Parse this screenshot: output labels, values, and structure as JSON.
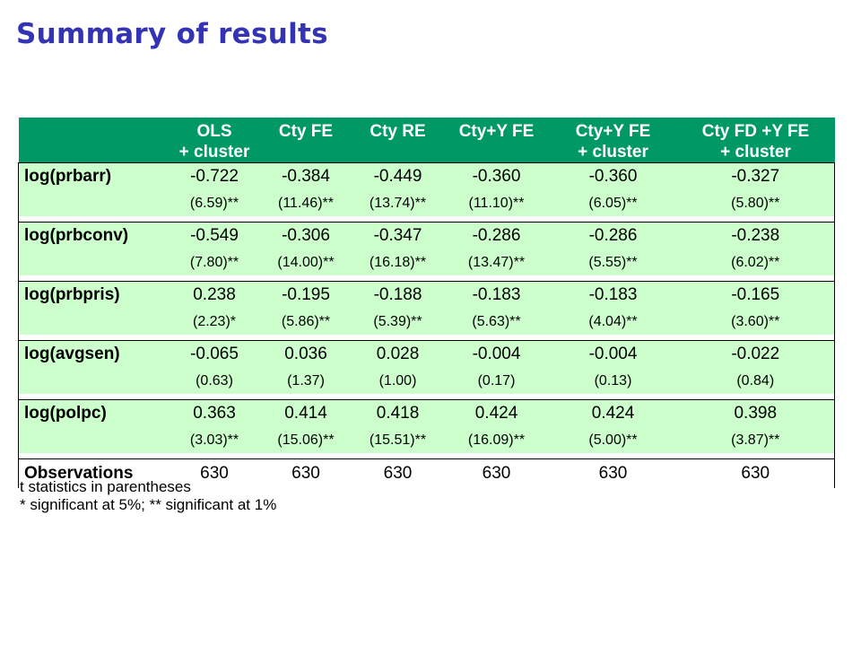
{
  "title": "Summary of results",
  "table": {
    "columns": [
      [
        "OLS",
        "+ cluster"
      ],
      [
        "Cty FE"
      ],
      [
        "Cty RE"
      ],
      [
        "Cty+Y FE"
      ],
      [
        "Cty+Y FE",
        "+ cluster"
      ],
      [
        "Cty FD +Y FE",
        "+ cluster"
      ]
    ],
    "rows": [
      {
        "label": "log(prbarr)",
        "coef": [
          "-0.722",
          "-0.384",
          "-0.449",
          "-0.360",
          "-0.360",
          "-0.327"
        ],
        "t": [
          "(6.59)**",
          "(11.46)**",
          "(13.74)**",
          "(11.10)**",
          "(6.05)**",
          "(5.80)**"
        ]
      },
      {
        "label": "log(prbconv)",
        "coef": [
          "-0.549",
          "-0.306",
          "-0.347",
          "-0.286",
          "-0.286",
          "-0.238"
        ],
        "t": [
          "(7.80)**",
          "(14.00)**",
          "(16.18)**",
          "(13.47)**",
          "(5.55)**",
          "(6.02)**"
        ]
      },
      {
        "label": "log(prbpris)",
        "coef": [
          "0.238",
          "-0.195",
          "-0.188",
          "-0.183",
          "-0.183",
          "-0.165"
        ],
        "t": [
          "(2.23)*",
          "(5.86)**",
          "(5.39)**",
          "(5.63)**",
          "(4.04)**",
          "(3.60)**"
        ]
      },
      {
        "label": "log(avgsen)",
        "coef": [
          "-0.065",
          "0.036",
          "0.028",
          "-0.004",
          "-0.004",
          "-0.022"
        ],
        "t": [
          "(0.63)",
          "(1.37)",
          "(1.00)",
          "(0.17)",
          "(0.13)",
          "(0.84)"
        ]
      },
      {
        "label": "log(polpc)",
        "coef": [
          "0.363",
          "0.414",
          "0.418",
          "0.424",
          "0.424",
          "0.398"
        ],
        "t": [
          "(3.03)**",
          "(15.06)**",
          "(15.51)**",
          "(16.09)**",
          "(5.00)**",
          "(3.87)**"
        ]
      }
    ],
    "observations": {
      "label": "Observations",
      "values": [
        "630",
        "630",
        "630",
        "630",
        "630",
        "630"
      ]
    }
  },
  "notes": [
    "t statistics in parentheses",
    "* significant at 5%; ** significant at 1%"
  ],
  "colors": {
    "title": "#3333b3",
    "header_bg": "#009966",
    "band_bg": "#ccffcc"
  }
}
